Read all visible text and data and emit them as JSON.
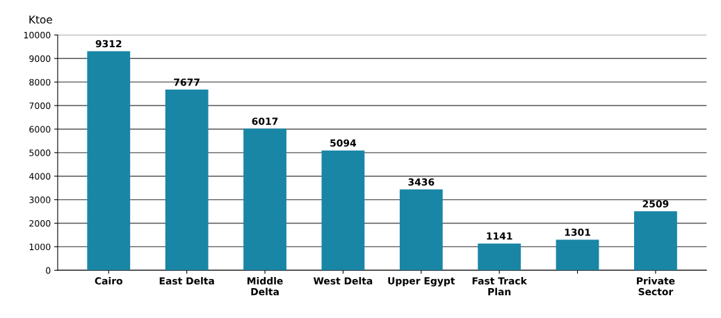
{
  "chart_data": {
    "type": "bar",
    "ylabel": "Ktoe",
    "categories": [
      "Cairo",
      "East Delta",
      "Middle\nDelta",
      "West Delta",
      "Upper Egypt",
      "Fast Track\nPlan",
      null,
      "Private\nSector"
    ],
    "values": [
      9312,
      7677,
      6017,
      5094,
      3436,
      1141,
      1301,
      2509
    ],
    "color": "#1a86a6",
    "ylim": [
      0,
      10000
    ],
    "yticks": [
      0,
      1000,
      2000,
      3000,
      4000,
      5000,
      6000,
      7000,
      8000,
      9000,
      10000
    ],
    "grid": "y",
    "data_labels": true
  }
}
